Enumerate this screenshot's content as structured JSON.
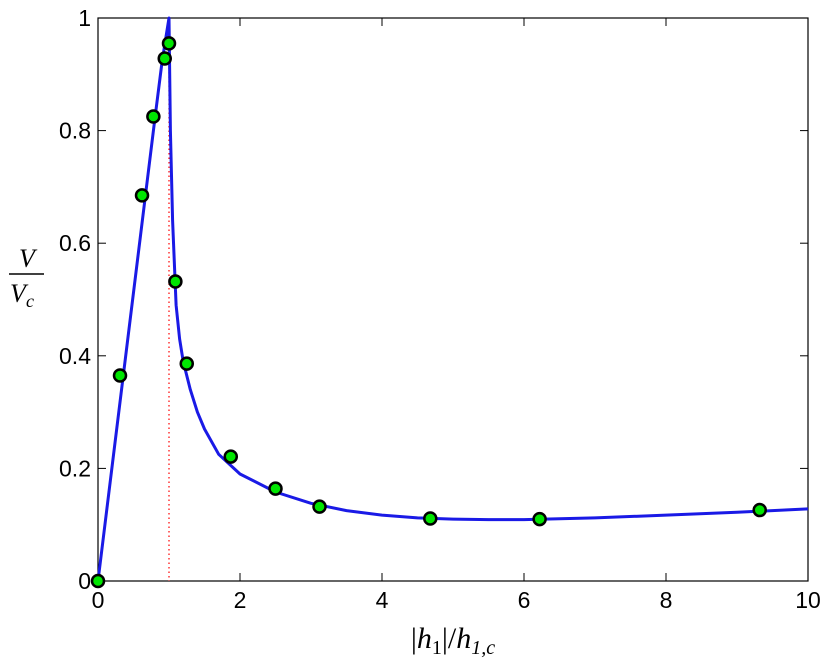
{
  "chart_data": {
    "type": "scatter",
    "title": "",
    "xlabel": "|h1|/h1,c",
    "xlabel_parts": {
      "left_bar": "|",
      "base": "h",
      "sub": "1",
      "right_bar": "|",
      "slash": "/",
      "base2": "h",
      "sub2": "1,c"
    },
    "ylabel": "V/Vc",
    "ylabel_parts": {
      "num": "V",
      "den_base": "V",
      "den_sub": "c"
    },
    "xlim": [
      0,
      10
    ],
    "ylim": [
      0,
      1
    ],
    "xticks": [
      0,
      2,
      4,
      6,
      8,
      10
    ],
    "yticks": [
      0,
      0.2,
      0.4,
      0.6,
      0.8,
      1
    ],
    "xtick_labels": [
      "0",
      "2",
      "4",
      "6",
      "8",
      "10"
    ],
    "ytick_labels": [
      "0",
      "0.2",
      "0.4",
      "0.6",
      "0.8",
      "1"
    ],
    "grid": false,
    "legend": "none",
    "colors": {
      "curve": "#1a1ae6",
      "marker_fill": "#00e600",
      "marker_edge": "#000000",
      "vline": "#ff0000"
    },
    "vline_x": 1.0,
    "series": [
      {
        "kind": "points",
        "x": [
          0,
          0.31,
          0.62,
          0.78,
          0.94,
          1.0,
          1.09,
          1.25,
          1.87,
          2.5,
          3.12,
          4.68,
          6.22,
          9.32
        ],
        "y": [
          0.0,
          0.365,
          0.685,
          0.825,
          0.928,
          0.955,
          0.532,
          0.386,
          0.221,
          0.164,
          0.132,
          0.111,
          0.11,
          0.126
        ]
      },
      {
        "kind": "curve",
        "x": [
          0,
          0.2,
          0.4,
          0.6,
          0.8,
          0.9,
          0.95,
          1.0,
          1.02,
          1.05,
          1.1,
          1.15,
          1.2,
          1.3,
          1.4,
          1.5,
          1.7,
          2.0,
          2.5,
          3.0,
          3.5,
          4.0,
          4.5,
          5.0,
          5.5,
          6.0,
          7.0,
          8.0,
          9.0,
          10.0
        ],
        "y": [
          0.0,
          0.205,
          0.41,
          0.615,
          0.82,
          0.92,
          0.96,
          1.0,
          0.8,
          0.64,
          0.49,
          0.43,
          0.39,
          0.34,
          0.3,
          0.27,
          0.225,
          0.19,
          0.158,
          0.138,
          0.125,
          0.117,
          0.112,
          0.11,
          0.109,
          0.109,
          0.112,
          0.117,
          0.122,
          0.128
        ]
      }
    ]
  }
}
